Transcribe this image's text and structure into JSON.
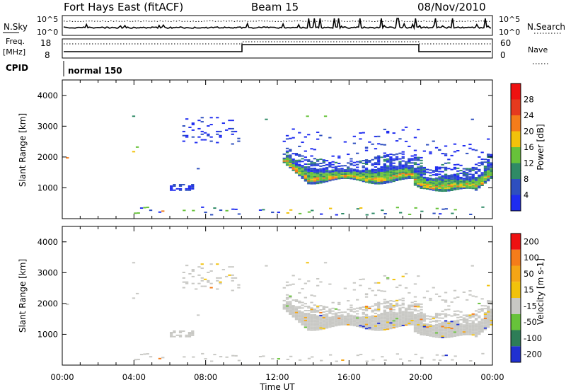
{
  "header": {
    "station": "Fort Hays East (fitACF)",
    "beam": "Beam 15",
    "date": "08/Nov/2010"
  },
  "status_panels": {
    "nsky_label": "N.Sky",
    "nsearch_label": "N.Search",
    "noise_ticks": [
      "10^5",
      "10^0"
    ],
    "freq_label": "Freq.",
    "freq_unit": "[MHz]",
    "freq_ticks": [
      "18",
      "8"
    ],
    "nave_label": "Nave",
    "nave_ticks": [
      "60",
      "0"
    ],
    "cpid_label": "CPID",
    "cpid_value": "normal 150"
  },
  "chart_data": [
    {
      "type": "heatmap",
      "name": "power",
      "xlabel": "Time UT",
      "ylabel": "Slant Range [km]",
      "xlim_hours": [
        0,
        24
      ],
      "ylim_km": [
        0,
        4500
      ],
      "y_ticks": [
        1000,
        2000,
        3000,
        4000
      ],
      "colorbar": {
        "label": "Power [dB]",
        "ticks": [
          "4",
          "8",
          "12",
          "16",
          "20",
          "24",
          "28"
        ],
        "colors": [
          "#1f2cf0",
          "#2e4fbf",
          "#2f8a66",
          "#67c23a",
          "#f2c20b",
          "#f47c1a",
          "#e53a1e",
          "#ee1111"
        ]
      },
      "echo_regions": [
        {
          "t_start": 6.0,
          "t_end": 7.3,
          "r_min": 900,
          "r_max": 1100,
          "dominant_db": 6
        },
        {
          "t_start": 6.7,
          "t_end": 9.8,
          "r_min": 2400,
          "r_max": 3300,
          "dominant_db": 6
        },
        {
          "t_start": 12.3,
          "t_end": 24.0,
          "r_min": 900,
          "r_max": 2400,
          "dominant_db": 12
        }
      ]
    },
    {
      "type": "heatmap",
      "name": "velocity",
      "xlabel": "Time UT",
      "ylabel": "Slant Range [km]",
      "xlim_hours": [
        0,
        24
      ],
      "ylim_km": [
        0,
        4500
      ],
      "y_ticks": [
        1000,
        2000,
        3000,
        4000
      ],
      "colorbar": {
        "label": "Velocity [m s-1]",
        "ticks": [
          "200",
          "100",
          "50",
          "15",
          "-15",
          "-50",
          "-100",
          "-200"
        ],
        "colors": [
          "#2030d0",
          "#2d7d57",
          "#67c23a",
          "#c8c8c4",
          "#f2c20b",
          "#f4a516",
          "#f47c1a",
          "#ee1111"
        ]
      },
      "dominant_velocity": "-15 to 15"
    }
  ],
  "x_ticks": [
    "00:00",
    "04:00",
    "08:00",
    "12:00",
    "16:00",
    "20:00",
    "00:00"
  ]
}
